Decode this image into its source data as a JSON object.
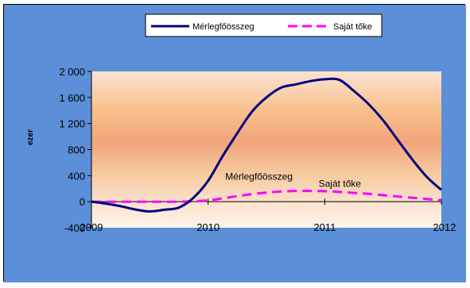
{
  "colors": {
    "figure_bg": "#5b8fd8",
    "plot_gradient": [
      "#fbe3d3",
      "#f8c08c",
      "#f1a47a",
      "#f6c99e",
      "#fbe3cf",
      "#fdf4e8"
    ],
    "legend_bg": "#ffffff"
  },
  "chart_data": {
    "type": "line",
    "title": "",
    "xlabel": "",
    "ylabel": "ezer",
    "x": [
      2009.0,
      2009.125,
      2009.25,
      2009.375,
      2009.5,
      2009.625,
      2009.75,
      2009.875,
      2010.0,
      2010.125,
      2010.25,
      2010.375,
      2010.5,
      2010.625,
      2010.75,
      2010.875,
      2011.0,
      2011.125,
      2011.25,
      2011.375,
      2011.5,
      2011.625,
      2011.75,
      2011.875,
      2012.0
    ],
    "xlim": [
      2009,
      2012
    ],
    "ylim": [
      -400,
      2000
    ],
    "x_ticks": [
      2009,
      2010,
      2011,
      2012
    ],
    "x_tick_labels": [
      "2009",
      "2010",
      "2011",
      "2012"
    ],
    "y_ticks": [
      -400,
      0,
      400,
      800,
      1200,
      1600,
      2000
    ],
    "y_tick_labels": [
      "-400",
      "0",
      "400",
      "800",
      "1 200",
      "1 600",
      "2 000"
    ],
    "legend_position": "top",
    "series": [
      {
        "name": "Mérlegfőösszeg",
        "color": "#000080",
        "style": "solid",
        "values": [
          0,
          -30,
          -70,
          -120,
          -150,
          -125,
          -90,
          60,
          320,
          700,
          1050,
          1380,
          1600,
          1750,
          1800,
          1850,
          1880,
          1870,
          1700,
          1500,
          1250,
          950,
          650,
          380,
          180
        ]
      },
      {
        "name": "Saját tőke",
        "color": "#ff00ff",
        "style": "dashed",
        "values": [
          0,
          0,
          0,
          0,
          0,
          0,
          0,
          5,
          20,
          50,
          85,
          115,
          140,
          155,
          165,
          165,
          160,
          150,
          135,
          120,
          100,
          80,
          60,
          40,
          20
        ]
      }
    ],
    "annotations": [
      {
        "text": "Mérlegfőösszeg",
        "x": 2010.42,
        "y": 290
      },
      {
        "text": "Saját tőke",
        "x": 2011.22,
        "y": 180
      }
    ]
  }
}
